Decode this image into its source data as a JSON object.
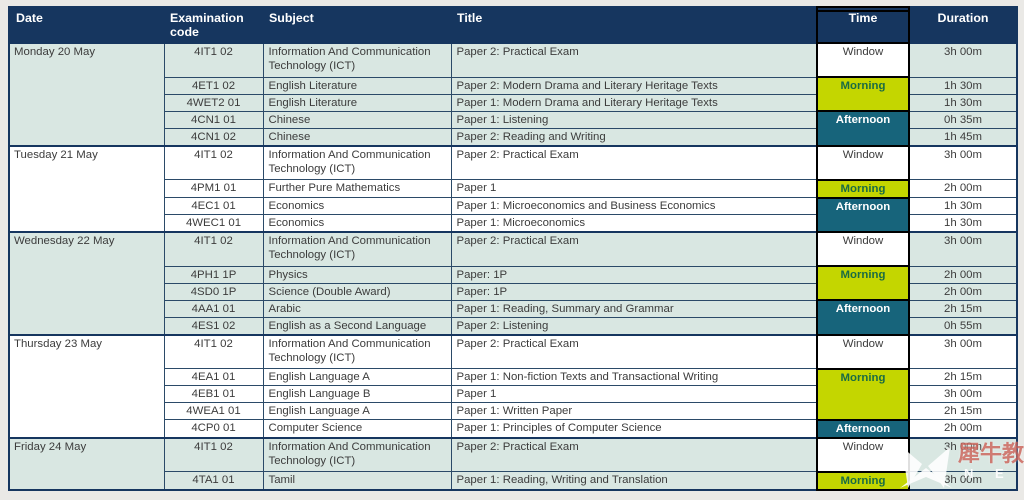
{
  "table": {
    "columns": [
      {
        "key": "date",
        "label": "Date"
      },
      {
        "key": "code",
        "label": "Examination code"
      },
      {
        "key": "subject",
        "label": "Subject"
      },
      {
        "key": "title",
        "label": "Title"
      },
      {
        "key": "time",
        "label": "Time"
      },
      {
        "key": "duration",
        "label": "Duration"
      }
    ],
    "days": [
      {
        "date": "Monday 20 May",
        "rows": [
          {
            "code": "4IT1 02",
            "subject": "Information And Communication Technology (ICT)",
            "title": "Paper 2: Practical Exam",
            "time_label": "Window",
            "time_type": "window",
            "time_span": 1,
            "duration": "3h 00m",
            "tall": true
          },
          {
            "code": "4ET1 02",
            "subject": "English Literature",
            "title": "Paper 2: Modern Drama and Literary Heritage Texts",
            "time_label": "Morning",
            "time_type": "morning",
            "time_span": 2,
            "duration": "1h 30m"
          },
          {
            "code": "4WET2 01",
            "subject": "English Literature",
            "title": "Paper 1: Modern Drama and Literary Heritage Texts",
            "duration": "1h 30m"
          },
          {
            "code": "4CN1 01",
            "subject": "Chinese",
            "title": "Paper 1: Listening",
            "time_label": "Afternoon",
            "time_type": "afternoon",
            "time_span": 2,
            "duration": "0h 35m"
          },
          {
            "code": "4CN1 02",
            "subject": "Chinese",
            "title": "Paper 2: Reading and Writing",
            "duration": "1h 45m"
          }
        ]
      },
      {
        "date": "Tuesday 21 May",
        "rows": [
          {
            "code": "4IT1 02",
            "subject": "Information And Communication Technology (ICT)",
            "title": "Paper 2: Practical Exam",
            "time_label": "Window",
            "time_type": "window",
            "time_span": 1,
            "duration": "3h 00m",
            "tall": true
          },
          {
            "code": "4PM1 01",
            "subject": "Further Pure Mathematics",
            "title": "Paper 1",
            "time_label": "Morning",
            "time_type": "morning",
            "time_span": 1,
            "duration": "2h 00m"
          },
          {
            "code": "4EC1 01",
            "subject": "Economics",
            "title": "Paper 1: Microeconomics and Business Economics",
            "time_label": "Afternoon",
            "time_type": "afternoon",
            "time_span": 2,
            "duration": "1h 30m"
          },
          {
            "code": "4WEC1 01",
            "subject": "Economics",
            "title": "Paper 1: Microeconomics",
            "duration": "1h 30m"
          }
        ]
      },
      {
        "date": "Wednesday 22 May",
        "rows": [
          {
            "code": "4IT1 02",
            "subject": "Information And Communication Technology (ICT)",
            "title": "Paper 2: Practical Exam",
            "time_label": "Window",
            "time_type": "window",
            "time_span": 1,
            "duration": "3h 00m",
            "tall": true
          },
          {
            "code": "4PH1 1P",
            "subject": "Physics",
            "title": "Paper: 1P",
            "time_label": "Morning",
            "time_type": "morning",
            "time_span": 2,
            "duration": "2h 00m"
          },
          {
            "code": "4SD0 1P",
            "subject": "Science (Double Award)",
            "title": "Paper: 1P",
            "duration": "2h 00m"
          },
          {
            "code": "4AA1 01",
            "subject": "Arabic",
            "title": "Paper 1: Reading, Summary and Grammar",
            "time_label": "Afternoon",
            "time_type": "afternoon",
            "time_span": 2,
            "duration": "2h 15m"
          },
          {
            "code": "4ES1 02",
            "subject": "English as a Second Language",
            "title": "Paper 2: Listening",
            "duration": "0h 55m"
          }
        ]
      },
      {
        "date": "Thursday 23 May",
        "rows": [
          {
            "code": "4IT1 02",
            "subject": "Information And Communication Technology (ICT)",
            "title": "Paper 2: Practical Exam",
            "time_label": "Window",
            "time_type": "window",
            "time_span": 1,
            "duration": "3h 00m",
            "tall": true
          },
          {
            "code": "4EA1 01",
            "subject": "English Language A",
            "title": "Paper 1: Non-fiction Texts and Transactional Writing",
            "time_label": "Morning",
            "time_type": "morning",
            "time_span": 3,
            "duration": "2h 15m"
          },
          {
            "code": "4EB1 01",
            "subject": "English Language B",
            "title": "Paper 1",
            "duration": "3h 00m"
          },
          {
            "code": "4WEA1 01",
            "subject": "English Language A",
            "title": "Paper 1: Written Paper",
            "duration": "2h 15m"
          },
          {
            "code": "4CP0 01",
            "subject": "Computer Science",
            "title": "Paper 1: Principles of Computer Science",
            "time_label": "Afternoon",
            "time_type": "afternoon",
            "time_span": 1,
            "duration": "2h 00m"
          }
        ]
      },
      {
        "date": "Friday 24 May",
        "rows": [
          {
            "code": "4IT1 02",
            "subject": "Information And Communication Technology (ICT)",
            "title": "Paper 2: Practical Exam",
            "time_label": "Window",
            "time_type": "window",
            "time_span": 1,
            "duration": "3h 00m",
            "tall": true
          },
          {
            "code": "4TA1 01",
            "subject": "Tamil",
            "title": "Paper 1: Reading, Writing and Translation",
            "time_label": "Morning",
            "time_type": "morning",
            "time_span": 1,
            "duration": "3h 00m"
          }
        ]
      }
    ]
  },
  "colors": {
    "header_bg": "#16365f",
    "header_text": "#ffffff",
    "row_green": "#d9e7e2",
    "row_white": "#ffffff",
    "morning_bg": "#c4d600",
    "morning_text": "#1a6b44",
    "afternoon_bg": "#17647b",
    "afternoon_text": "#ffffff",
    "window_bg": "#ffffff",
    "grid_line": "#2b4a68",
    "time_box_border": "#000000",
    "body_text": "#3c3c3c"
  },
  "watermark": {
    "cn_text": "犀牛教育",
    "latin_text": "N E"
  }
}
